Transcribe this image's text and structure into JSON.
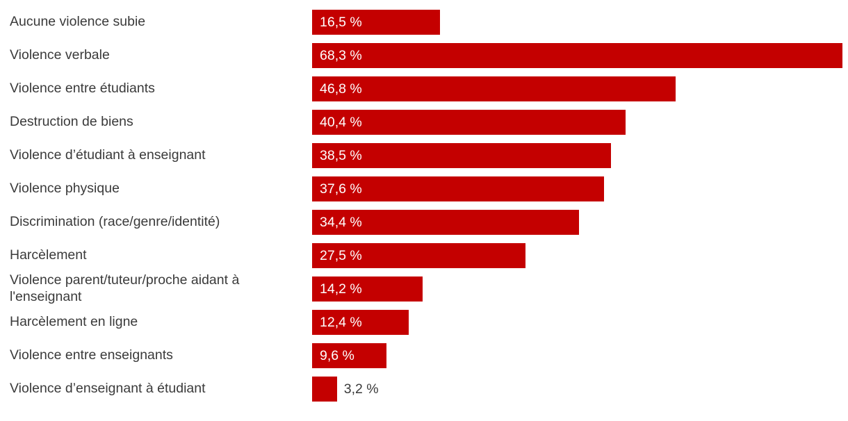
{
  "colors": {
    "bar": "#c40000",
    "category_text": "#3a3a3a",
    "value_inside_text": "#ffffff",
    "value_outside_text": "#3a3a3a",
    "background": "#ffffff"
  },
  "chart_data": {
    "type": "bar",
    "orientation": "horizontal",
    "title": "",
    "xlabel": "",
    "ylabel": "",
    "xlim": [
      0,
      69
    ],
    "grid": false,
    "legend": false,
    "categories": [
      "Aucune violence subie",
      "Violence verbale",
      "Violence entre étudiants",
      "Destruction de biens",
      "Violence d’étudiant à enseignant",
      "Violence physique",
      "Discrimination (race/genre/identité)",
      "Harcèlement",
      "Violence parent/tuteur/proche aidant à l'enseignant",
      "Harcèlement en ligne",
      "Violence entre enseignants",
      "Violence d’enseignant à étudiant"
    ],
    "values": [
      16.5,
      68.3,
      46.8,
      40.4,
      38.5,
      37.6,
      34.4,
      27.5,
      14.2,
      12.4,
      9.6,
      3.2
    ],
    "value_labels": [
      "16,5 %",
      "68,3 %",
      "46,8 %",
      "40,4 %",
      "38,5 %",
      "37,6 %",
      "34,4 %",
      "27,5 %",
      "14,2 %",
      "12,4 %",
      "9,6 %",
      "3,2 %"
    ],
    "value_label_positions": [
      "inside",
      "inside",
      "inside",
      "inside",
      "inside",
      "inside",
      "inside",
      "inside",
      "inside",
      "inside",
      "inside",
      "outside"
    ]
  }
}
